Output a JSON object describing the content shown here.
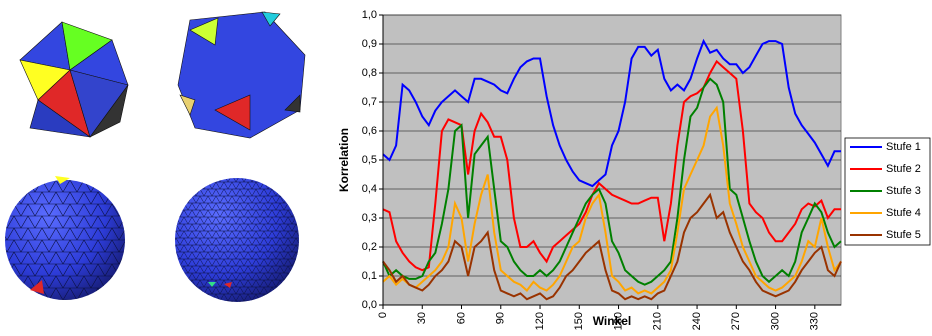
{
  "chart_data": {
    "type": "line",
    "x_label": "Winkel",
    "y_label": "Korrelation",
    "x": [
      0,
      5,
      10,
      15,
      20,
      25,
      30,
      35,
      40,
      45,
      50,
      55,
      60,
      65,
      70,
      75,
      80,
      85,
      90,
      95,
      100,
      105,
      110,
      115,
      120,
      125,
      130,
      135,
      140,
      145,
      150,
      155,
      160,
      165,
      170,
      175,
      180,
      185,
      190,
      195,
      200,
      205,
      210,
      215,
      220,
      225,
      230,
      235,
      240,
      245,
      250,
      255,
      260,
      265,
      270,
      275,
      280,
      285,
      290,
      295,
      300,
      305,
      310,
      315,
      320,
      325,
      330,
      335,
      340,
      345,
      350
    ],
    "xlim": [
      0,
      350
    ],
    "xticks": [
      0,
      30,
      60,
      90,
      120,
      150,
      180,
      210,
      240,
      270,
      300,
      330
    ],
    "ylim": [
      0,
      1
    ],
    "yticks": [
      {
        "value": 0,
        "label": "0,0"
      },
      {
        "value": 0.1,
        "label": "0,1"
      },
      {
        "value": 0.2,
        "label": "0,2"
      },
      {
        "value": 0.3,
        "label": "0,3"
      },
      {
        "value": 0.4,
        "label": "0,4"
      },
      {
        "value": 0.5,
        "label": "0,5"
      },
      {
        "value": 0.6,
        "label": "0,6"
      },
      {
        "value": 0.7,
        "label": "0,7"
      },
      {
        "value": 0.8,
        "label": "0,8"
      },
      {
        "value": 0.9,
        "label": "0,9"
      },
      {
        "value": 1,
        "label": "1,0"
      }
    ],
    "grid": true,
    "legend": "right",
    "series": [
      {
        "name": "Stufe 1",
        "color": "#0000ff",
        "values": [
          0.52,
          0.5,
          0.55,
          0.76,
          0.74,
          0.7,
          0.65,
          0.62,
          0.67,
          0.7,
          0.72,
          0.74,
          0.72,
          0.7,
          0.78,
          0.78,
          0.77,
          0.76,
          0.74,
          0.73,
          0.78,
          0.82,
          0.84,
          0.85,
          0.85,
          0.72,
          0.62,
          0.55,
          0.5,
          0.46,
          0.43,
          0.42,
          0.41,
          0.43,
          0.45,
          0.55,
          0.6,
          0.7,
          0.85,
          0.89,
          0.89,
          0.86,
          0.88,
          0.78,
          0.74,
          0.76,
          0.74,
          0.78,
          0.85,
          0.91,
          0.87,
          0.88,
          0.85,
          0.83,
          0.83,
          0.8,
          0.82,
          0.86,
          0.9,
          0.91,
          0.91,
          0.9,
          0.75,
          0.66,
          0.62,
          0.59,
          0.56,
          0.52,
          0.48,
          0.53,
          0.53
        ]
      },
      {
        "name": "Stufe 2",
        "color": "#ff0000",
        "values": [
          0.33,
          0.32,
          0.22,
          0.18,
          0.15,
          0.13,
          0.12,
          0.13,
          0.35,
          0.6,
          0.64,
          0.63,
          0.62,
          0.45,
          0.6,
          0.66,
          0.63,
          0.58,
          0.58,
          0.5,
          0.3,
          0.2,
          0.2,
          0.22,
          0.18,
          0.15,
          0.2,
          0.22,
          0.24,
          0.26,
          0.28,
          0.32,
          0.38,
          0.42,
          0.4,
          0.38,
          0.37,
          0.36,
          0.35,
          0.35,
          0.36,
          0.37,
          0.37,
          0.22,
          0.35,
          0.55,
          0.7,
          0.72,
          0.73,
          0.75,
          0.8,
          0.84,
          0.82,
          0.8,
          0.78,
          0.6,
          0.35,
          0.32,
          0.3,
          0.25,
          0.22,
          0.22,
          0.25,
          0.28,
          0.33,
          0.35,
          0.34,
          0.36,
          0.3,
          0.33,
          0.33
        ]
      },
      {
        "name": "Stufe 3",
        "color": "#008000",
        "values": [
          0.15,
          0.1,
          0.12,
          0.1,
          0.09,
          0.09,
          0.1,
          0.15,
          0.18,
          0.28,
          0.4,
          0.6,
          0.62,
          0.3,
          0.52,
          0.55,
          0.58,
          0.4,
          0.22,
          0.2,
          0.15,
          0.12,
          0.1,
          0.1,
          0.12,
          0.1,
          0.12,
          0.15,
          0.2,
          0.25,
          0.3,
          0.35,
          0.38,
          0.4,
          0.35,
          0.22,
          0.18,
          0.12,
          0.1,
          0.08,
          0.07,
          0.08,
          0.1,
          0.12,
          0.15,
          0.3,
          0.5,
          0.65,
          0.68,
          0.75,
          0.78,
          0.76,
          0.7,
          0.4,
          0.38,
          0.3,
          0.22,
          0.15,
          0.1,
          0.08,
          0.1,
          0.12,
          0.1,
          0.15,
          0.25,
          0.3,
          0.35,
          0.32,
          0.25,
          0.2,
          0.22
        ]
      },
      {
        "name": "Stufe 4",
        "color": "#ffa500",
        "values": [
          0.08,
          0.1,
          0.07,
          0.09,
          0.07,
          0.06,
          0.08,
          0.1,
          0.12,
          0.15,
          0.2,
          0.35,
          0.3,
          0.15,
          0.28,
          0.38,
          0.45,
          0.25,
          0.12,
          0.1,
          0.08,
          0.07,
          0.05,
          0.08,
          0.06,
          0.05,
          0.07,
          0.1,
          0.15,
          0.2,
          0.22,
          0.3,
          0.35,
          0.38,
          0.25,
          0.1,
          0.08,
          0.05,
          0.06,
          0.04,
          0.05,
          0.04,
          0.06,
          0.08,
          0.12,
          0.25,
          0.4,
          0.45,
          0.5,
          0.55,
          0.65,
          0.68,
          0.55,
          0.35,
          0.28,
          0.2,
          0.15,
          0.1,
          0.08,
          0.06,
          0.05,
          0.06,
          0.08,
          0.1,
          0.15,
          0.22,
          0.2,
          0.3,
          0.2,
          0.12,
          0.15
        ]
      },
      {
        "name": "Stufe 5",
        "color": "#993300",
        "values": [
          0.15,
          0.12,
          0.08,
          0.1,
          0.07,
          0.06,
          0.05,
          0.07,
          0.1,
          0.12,
          0.15,
          0.22,
          0.2,
          0.1,
          0.2,
          0.22,
          0.25,
          0.12,
          0.05,
          0.04,
          0.03,
          0.04,
          0.02,
          0.03,
          0.04,
          0.02,
          0.03,
          0.06,
          0.1,
          0.12,
          0.15,
          0.18,
          0.2,
          0.22,
          0.12,
          0.05,
          0.04,
          0.02,
          0.03,
          0.02,
          0.03,
          0.02,
          0.04,
          0.05,
          0.1,
          0.15,
          0.25,
          0.3,
          0.32,
          0.35,
          0.38,
          0.3,
          0.32,
          0.25,
          0.2,
          0.15,
          0.12,
          0.08,
          0.05,
          0.04,
          0.03,
          0.04,
          0.05,
          0.08,
          0.12,
          0.15,
          0.18,
          0.2,
          0.12,
          0.1,
          0.15
        ]
      }
    ]
  }
}
